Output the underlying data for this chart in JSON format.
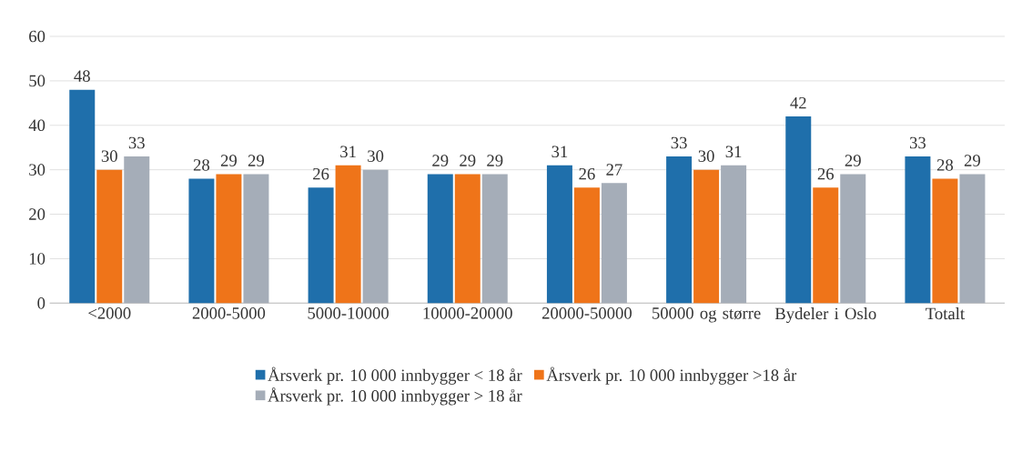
{
  "chart_data": {
    "type": "bar",
    "categories": [
      "<2000",
      "2000-5000",
      "5000-10000",
      "10000-20000",
      "20000-50000",
      "50000 og større",
      "Bydeler i Oslo",
      "Totalt"
    ],
    "series": [
      {
        "name": "Årsverk pr. 10 000 innbygger < 18 år",
        "color": "#1f6fab",
        "values": [
          48,
          28,
          26,
          29,
          31,
          33,
          42,
          33
        ]
      },
      {
        "name": "Årsverk pr. 10 000 innbygger >18 år",
        "color": "#ef7419",
        "values": [
          30,
          29,
          31,
          29,
          26,
          30,
          26,
          28
        ]
      },
      {
        "name": "Årsverk pr. 10 000 innbygger > 18 år",
        "color": "#a5adb8",
        "values": [
          33,
          29,
          30,
          29,
          27,
          31,
          29,
          29
        ]
      }
    ],
    "ylim": [
      0,
      60
    ],
    "yticks": [
      0,
      10,
      20,
      30,
      40,
      50,
      60
    ],
    "grid": "y",
    "legend": "bottom",
    "data_labels": true
  }
}
